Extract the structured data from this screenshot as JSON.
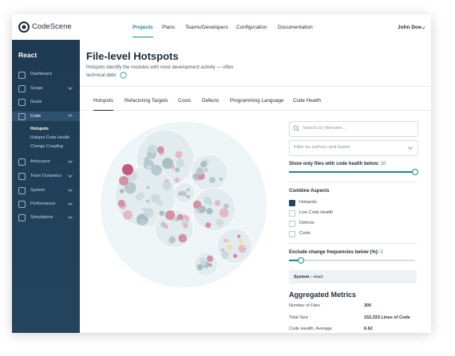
{
  "header": {
    "logo": "CodeScene",
    "nav": [
      "Projects",
      "Plans",
      "Teams/Developers",
      "Configuration",
      "Documentation"
    ],
    "user": "John Doe"
  },
  "sidebar": {
    "project": "React",
    "items": [
      "Dashboard",
      "Scope",
      "Goals",
      "Code",
      "Arhicuture",
      "Team Dynamics",
      "System",
      "Performance",
      "Simulations"
    ],
    "subitems": [
      "Hotspots",
      "Hotspot Code Health",
      "Change Coupling"
    ]
  },
  "main": {
    "title": "File-level Hotspots",
    "subtitle": "Hotspots identify the modules with most development activity — often technical debt.",
    "tabs": [
      "Hotspots",
      "Refactoring Targets",
      "Costs",
      "Defects",
      "Programming Language",
      "Code Health"
    ]
  },
  "filters": {
    "search": "Search by filename...",
    "authors": "Filter bu authors and teams",
    "health_label": "Show only files with code health below:",
    "health_value": 10,
    "combine_title": "Combine Aspects",
    "aspects": [
      "Hotspots",
      "Low Code Health",
      "Defects",
      "Costs"
    ],
    "exclude_label": "Exclude change frequencies below (%):",
    "exclude_value": 2,
    "breadcrumb": [
      "System",
      "react"
    ]
  },
  "metrics": {
    "title": "Aggregated Metrics",
    "rows": [
      [
        "Number of Files",
        "300"
      ],
      [
        "Total Size",
        "152,333 Lines of Code"
      ],
      [
        "Code Health, Average",
        "6.62"
      ]
    ]
  }
}
